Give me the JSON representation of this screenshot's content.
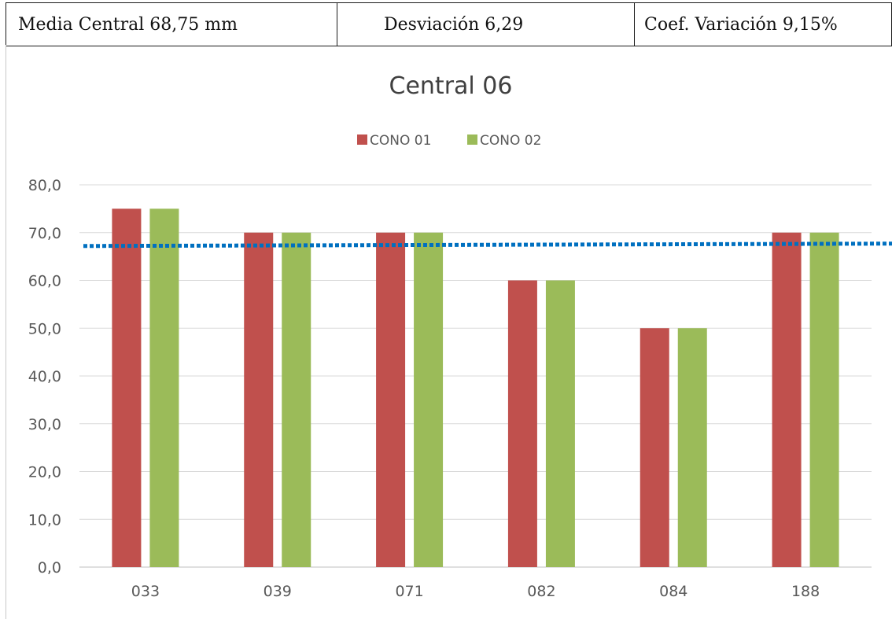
{
  "stats": {
    "media": "Media Central 68,75 mm",
    "desviacion": "Desviación 6,29",
    "coef": "Coef. Variación 9,15%"
  },
  "chart_data": {
    "type": "bar",
    "title": "Central 06",
    "xlabel": "",
    "ylabel": "",
    "categories": [
      "033",
      "039",
      "071",
      "082",
      "084",
      "188"
    ],
    "series": [
      {
        "name": "CONO 01",
        "color": "#c0504d",
        "values": [
          75.0,
          70.0,
          70.0,
          60.0,
          50.0,
          70.0
        ]
      },
      {
        "name": "CONO 02",
        "color": "#9bbb59",
        "values": [
          75.0,
          70.0,
          70.0,
          60.0,
          50.0,
          70.0
        ]
      }
    ],
    "ylim": [
      0,
      80
    ],
    "yticks": [
      0,
      10,
      20,
      30,
      40,
      50,
      60,
      70,
      80
    ],
    "ytick_labels": [
      "0,0",
      "10,0",
      "20,0",
      "30,0",
      "40,0",
      "50,0",
      "60,0",
      "70,0",
      "80,0"
    ],
    "grid": true,
    "legend": "top-center",
    "reference_line": {
      "value_start": 67.2,
      "value_end": 67.7,
      "color": "#0070c0",
      "style": "dotted"
    }
  }
}
